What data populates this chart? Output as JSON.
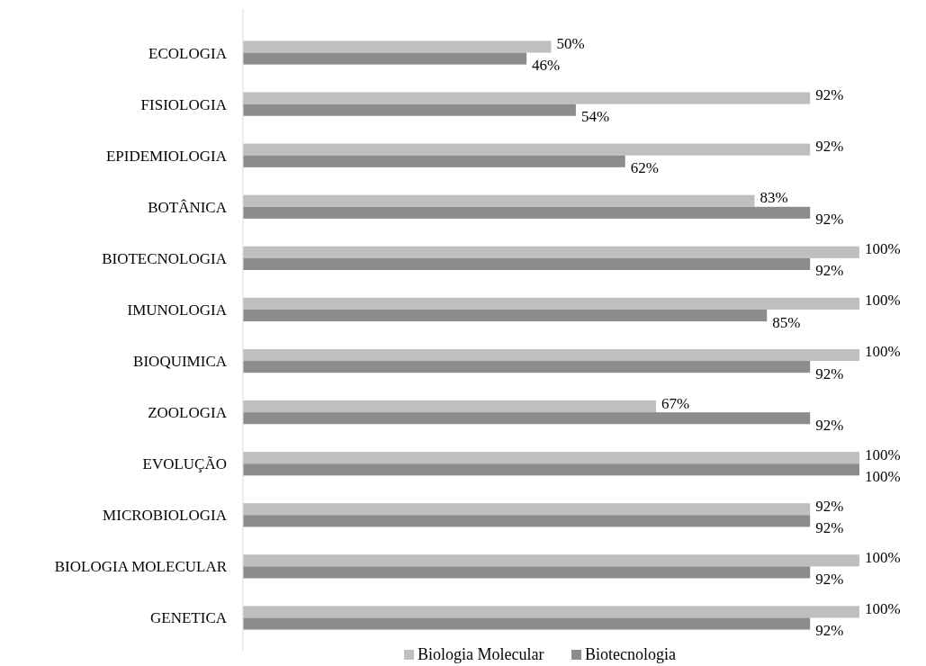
{
  "chart_data": {
    "type": "bar",
    "orientation": "horizontal",
    "categories": [
      "ECOLOGIA",
      "FISIOLOGIA",
      "EPIDEMIOLOGIA",
      "BOTÂNICA",
      "BIOTECNOLOGIA",
      "IMUNOLOGIA",
      "BIOQUIMICA",
      "ZOOLOGIA",
      "EVOLUÇÃO",
      "MICROBIOLOGIA",
      "BIOLOGIA MOLECULAR",
      "GENETICA"
    ],
    "series": [
      {
        "name": "Biologia Molecular",
        "color": "#bfbfbf",
        "values": [
          50,
          92,
          92,
          83,
          100,
          100,
          100,
          67,
          100,
          92,
          100,
          100
        ],
        "value_labels": [
          "50%",
          "92%",
          "92%",
          "83%",
          "100%",
          "100%",
          "100%",
          "67%",
          "100%",
          "92%",
          "100%",
          "100%"
        ]
      },
      {
        "name": "Biotecnologia",
        "color": "#8c8c8c",
        "values": [
          46,
          54,
          62,
          92,
          92,
          85,
          92,
          92,
          100,
          92,
          92,
          92
        ],
        "value_labels": [
          "46%",
          "54%",
          "62%",
          "92%",
          "92%",
          "85%",
          "92%",
          "92%",
          "100%",
          "92%",
          "92%",
          "92%"
        ]
      }
    ],
    "legend": "bottom"
  }
}
